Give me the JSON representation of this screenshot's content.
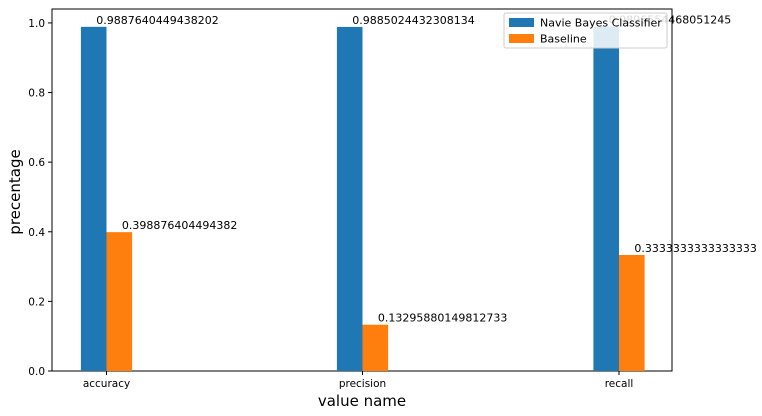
{
  "chart_data": {
    "type": "bar",
    "title": "",
    "xlabel": "value name",
    "ylabel": "precentage",
    "categories": [
      "accuracy",
      "precision",
      "recall"
    ],
    "series": [
      {
        "name": "Navie Bayes Classifier",
        "color": "#1f77b4",
        "values": [
          0.9887640449438202,
          0.9885024432308134,
          0.9896554468051245
        ],
        "labels": [
          "0.9887640449438202",
          "0.9885024432308134",
          "0.9896554468051245"
        ]
      },
      {
        "name": "Baseline",
        "color": "#ff7f0e",
        "values": [
          0.398876404494382,
          0.13295880149812733,
          0.3333333333333333
        ],
        "labels": [
          "0.398876404494382",
          "0.13295880149812733",
          "0.3333333333333333"
        ]
      }
    ],
    "ylim": [
      0,
      1.04
    ],
    "yticks": [
      "0.0",
      "0.2",
      "0.4",
      "0.6",
      "0.8",
      "1.0"
    ],
    "legend_position": "top-right",
    "grid": false
  }
}
